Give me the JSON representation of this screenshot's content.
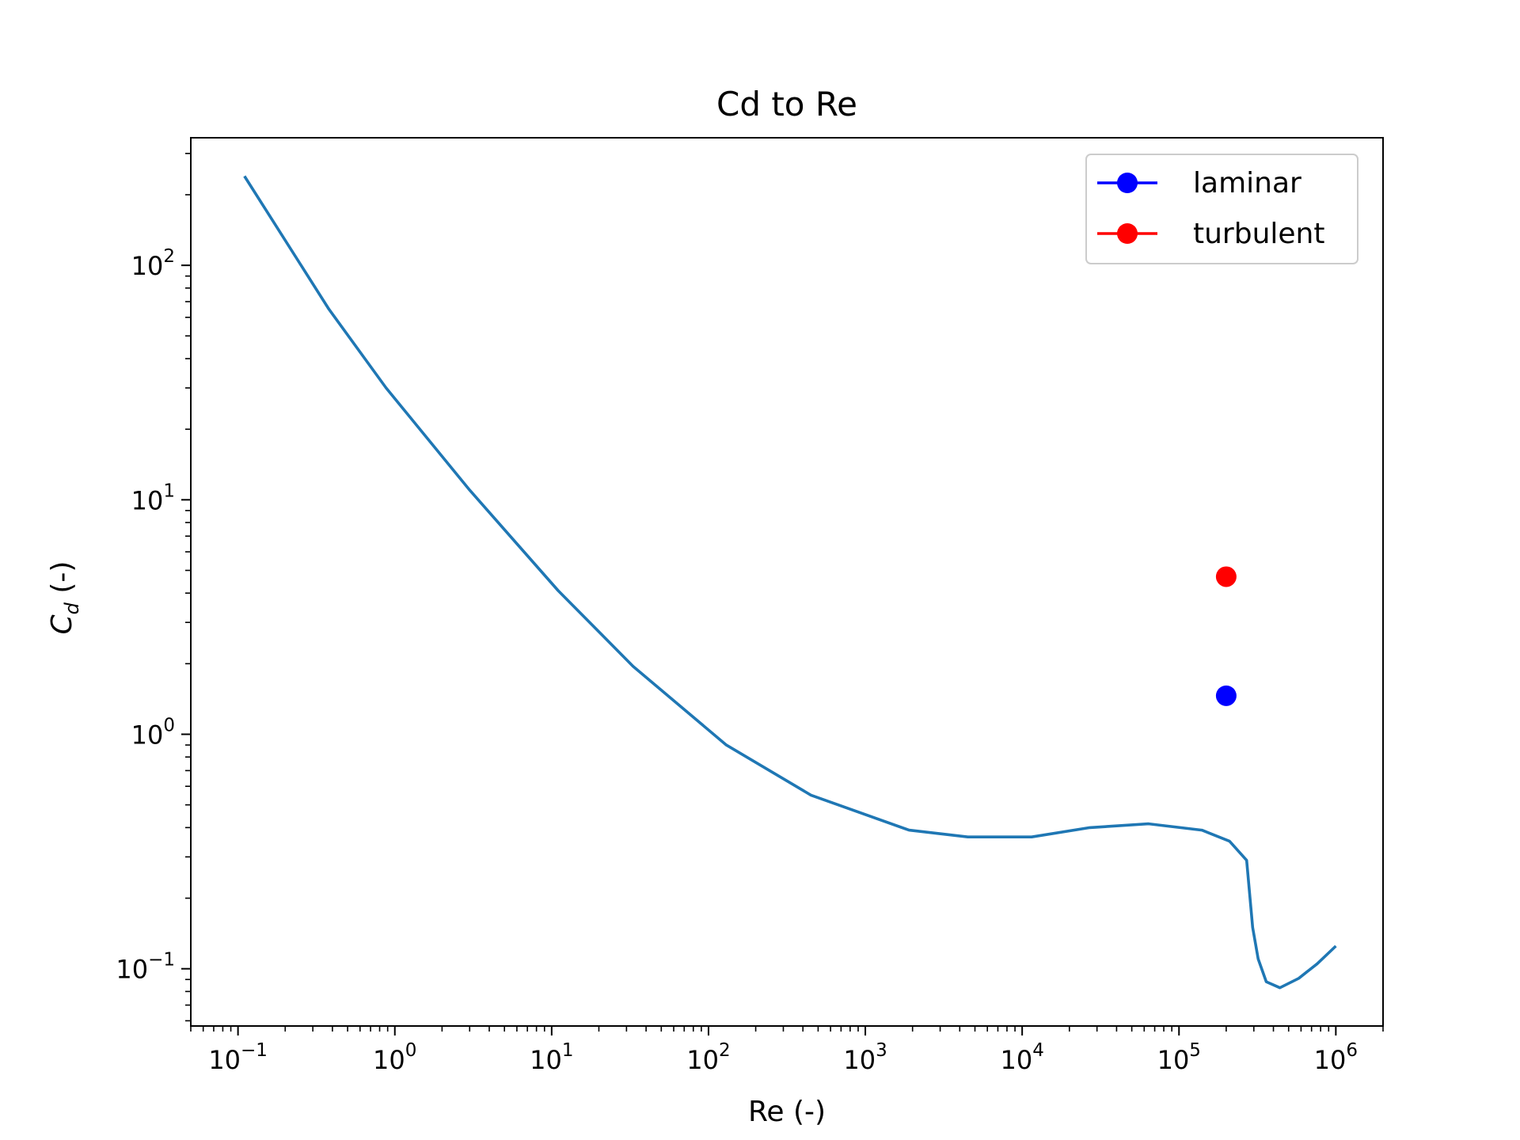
{
  "chart_data": {
    "type": "line",
    "title": "Cd to Re",
    "xlabel": "Re (-)",
    "ylabel_main": "C",
    "ylabel_sub": "d",
    "ylabel_rest": " (-)",
    "xscale": "log",
    "yscale": "log",
    "xlim": [
      0.05,
      2000000
    ],
    "ylim": [
      0.057,
      350
    ],
    "grid": false,
    "legend_placement": "top-right",
    "x_ticks": [
      {
        "base": "10",
        "exp": "−1",
        "value": 0.1
      },
      {
        "base": "10",
        "exp": "0",
        "value": 1
      },
      {
        "base": "10",
        "exp": "1",
        "value": 10
      },
      {
        "base": "10",
        "exp": "2",
        "value": 100
      },
      {
        "base": "10",
        "exp": "3",
        "value": 1000
      },
      {
        "base": "10",
        "exp": "4",
        "value": 10000
      },
      {
        "base": "10",
        "exp": "5",
        "value": 100000
      },
      {
        "base": "10",
        "exp": "6",
        "value": 1000000
      }
    ],
    "y_ticks": [
      {
        "base": "10",
        "exp": "−1",
        "value": 0.1
      },
      {
        "base": "10",
        "exp": "0",
        "value": 1
      },
      {
        "base": "10",
        "exp": "1",
        "value": 10
      },
      {
        "base": "10",
        "exp": "2",
        "value": 100
      }
    ],
    "series": [
      {
        "color": "#1f77b4",
        "x": [
          0.11,
          0.38,
          0.88,
          3.0,
          11,
          33,
          130,
          450,
          1900,
          4500,
          11500,
          27000,
          64000,
          140000,
          210000,
          270000,
          295000,
          320000,
          360000,
          440000,
          580000,
          760000,
          1000000
        ],
        "y": [
          240,
          65,
          30,
          11,
          4.1,
          1.95,
          0.9,
          0.55,
          0.39,
          0.365,
          0.365,
          0.4,
          0.415,
          0.39,
          0.35,
          0.29,
          0.15,
          0.11,
          0.088,
          0.083,
          0.091,
          0.105,
          0.125
        ]
      },
      {
        "name": "laminar",
        "color": "#0000ff",
        "x": [
          200000
        ],
        "y": [
          1.46
        ]
      },
      {
        "name": "turbulent",
        "color": "#ff0000",
        "x": [
          200000
        ],
        "y": [
          4.7
        ]
      }
    ]
  }
}
